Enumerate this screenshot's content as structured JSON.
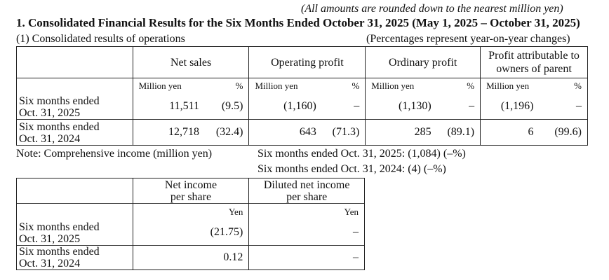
{
  "header": {
    "amount_note": "(All amounts are rounded down to the nearest million yen)",
    "title": "1. Consolidated Financial Results for the Six Months Ended October 31, 2025 (May 1, 2025 – October 31, 2025)",
    "section": "(1) Consolidated results of operations",
    "percent_note": "(Percentages represent year-on-year changes)"
  },
  "operations": {
    "columns": [
      "Net sales",
      "Operating profit",
      "Ordinary profit",
      "Profit attributable to owners of parent"
    ],
    "unit": "Million yen",
    "pct": "%",
    "rows": [
      {
        "label_1": "Six months ended",
        "label_2": "Oct. 31, 2025",
        "net_sales": "11,511",
        "net_sales_pct": "(9.5)",
        "operating": "(1,160)",
        "operating_pct": "–",
        "ordinary": "(1,130)",
        "ordinary_pct": "–",
        "profit_parent": "(1,196)",
        "profit_parent_pct": "–"
      },
      {
        "label_1": "Six months ended",
        "label_2": "Oct. 31, 2024",
        "net_sales": "12,718",
        "net_sales_pct": "(32.4)",
        "operating": "643",
        "operating_pct": "(71.3)",
        "ordinary": "285",
        "ordinary_pct": "(89.1)",
        "profit_parent": "6",
        "profit_parent_pct": "(99.6)"
      }
    ]
  },
  "comprehensive": {
    "label": "Note:   Comprehensive income (million yen)",
    "line_2025": "Six months ended Oct. 31, 2025: (1,084) (–%)",
    "line_2024": "Six months ended Oct. 31, 2024: (4) (–%)"
  },
  "per_share": {
    "col1_line1": "Net income",
    "col1_line2": "per share",
    "col2_line1": "Diluted net income",
    "col2_line2": "per share",
    "unit": "Yen",
    "rows": [
      {
        "label_1": "Six months ended",
        "label_2": "Oct. 31, 2025",
        "eps": "(21.75)",
        "diluted": "–"
      },
      {
        "label_1": "Six months ended",
        "label_2": "Oct. 31, 2024",
        "eps": "0.12",
        "diluted": "–"
      }
    ]
  }
}
